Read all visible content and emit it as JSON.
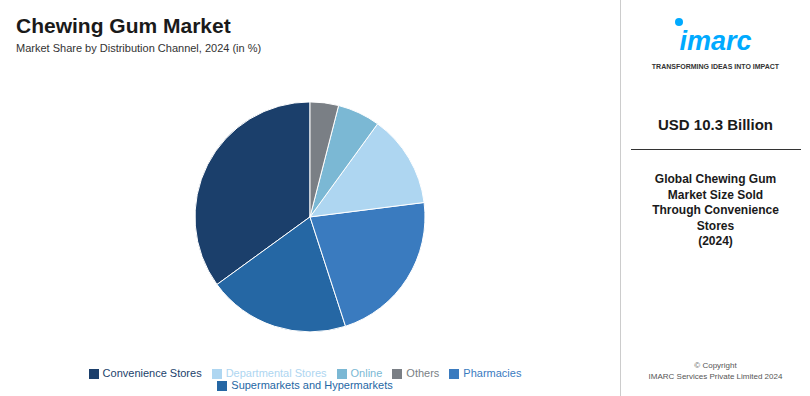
{
  "chart_data": {
    "type": "pie",
    "title": "Chewing Gum Market",
    "subtitle": "Market Share by Distribution Channel, 2024 (in %)",
    "categories": [
      "Convenience Stores",
      "Supermarkets and Hypermarkets",
      "Pharmacies",
      "Departmental Stores",
      "Online",
      "Others"
    ],
    "values": [
      35,
      20,
      22,
      13,
      6,
      4
    ],
    "colors": [
      "#1b3f6b",
      "#2567a4",
      "#3a7bbf",
      "#aed6f1",
      "#7bb8d4",
      "#7a7f85"
    ],
    "legend": "bottom",
    "annotations": [
      "imarc",
      "TRANSFORMING IDEAS INTO IMPACT",
      "USD 10.3 Billion",
      "Global Chewing Gum\nMarket Size Sold\nThrough Convenience\nStores\n(2024)",
      "© Copyright\nIMARC Services Private Limited 2024"
    ]
  }
}
